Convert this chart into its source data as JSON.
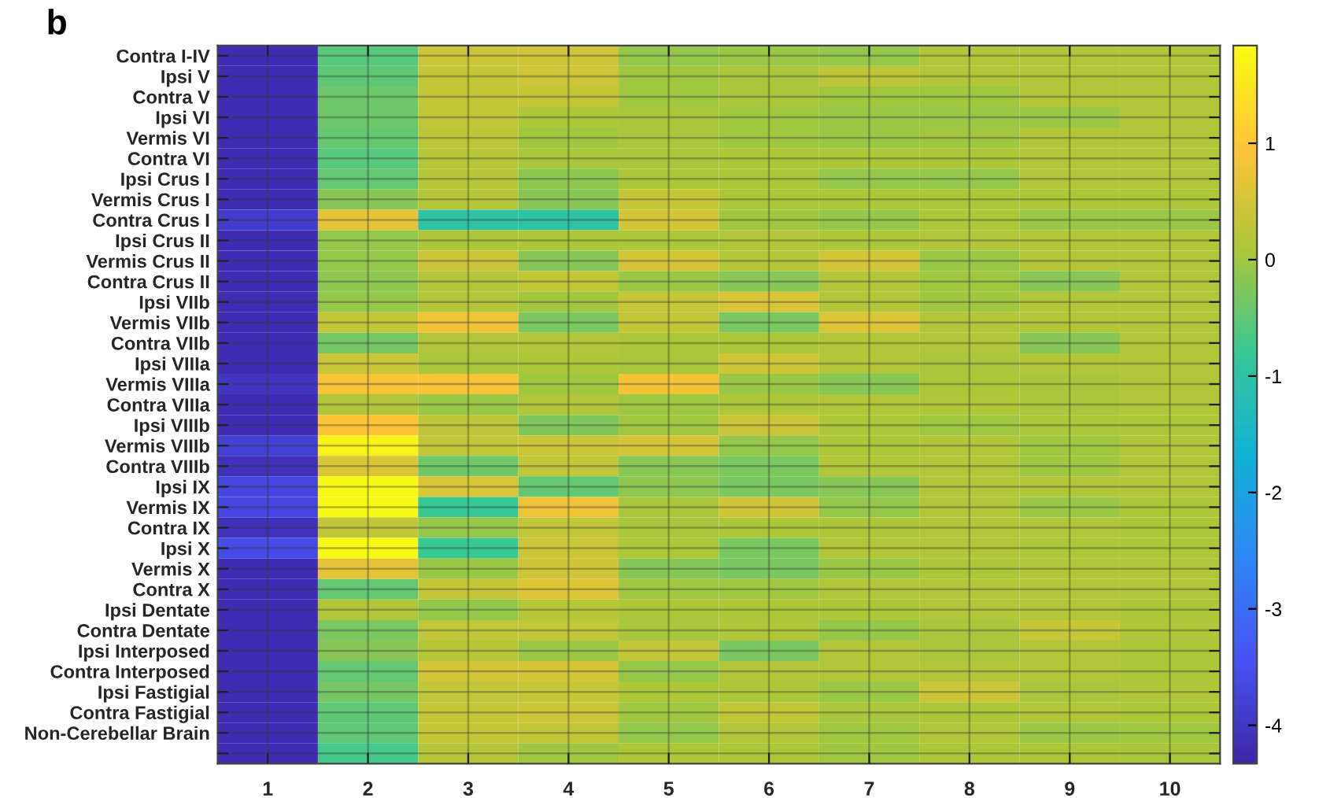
{
  "chart_data": {
    "type": "heatmap",
    "title": "b",
    "categories": [
      "1",
      "2",
      "3",
      "4",
      "5",
      "6",
      "7",
      "8",
      "9",
      "10"
    ],
    "y_categories": [
      "Contra I-IV",
      "Ipsi V",
      "Contra V",
      "Ipsi VI",
      "Vermis VI",
      "Contra VI",
      "Ipsi Crus I",
      "Vermis Crus I",
      "Contra Crus I",
      "Ipsi Crus II",
      "Vermis Crus II",
      "Contra Crus II",
      "Ipsi VIIb",
      "Vermis VIIb",
      "Contra VIIb",
      "Ipsi VIIIa",
      "Vermis VIIIa",
      "Contra VIIIa",
      "Ipsi VIIIb",
      "Vermis VIIIb",
      "Contra VIIIb",
      "Ipsi IX",
      "Vermis IX",
      "Contra IX",
      "Ipsi X",
      "Vermis X",
      "Contra X",
      "Ipsi Dentate",
      "Contra Dentate",
      "Ipsi Interposed",
      "Contra Interposed",
      "Ipsi Fastigial",
      "Contra Fastigial",
      "Non-Cerebellar Brain",
      null
    ],
    "cells": [
      [
        -4.2,
        -0.55,
        0.4,
        0.45,
        -0.1,
        -0.05,
        -0.1,
        0.15,
        0.15,
        0.15
      ],
      [
        -4.2,
        -0.5,
        0.35,
        0.45,
        0.0,
        0.05,
        0.25,
        0.15,
        0.15,
        0.15
      ],
      [
        -4.2,
        -0.4,
        0.35,
        0.35,
        0.0,
        0.05,
        0.0,
        0.0,
        0.15,
        0.15
      ],
      [
        -4.2,
        -0.4,
        0.3,
        0.1,
        0.05,
        0.0,
        -0.05,
        -0.05,
        -0.05,
        0.15
      ],
      [
        -4.2,
        -0.45,
        0.25,
        0.0,
        0.05,
        0.0,
        -0.05,
        0.0,
        0.15,
        0.15
      ],
      [
        -4.2,
        -0.55,
        0.2,
        0.05,
        0.05,
        0.1,
        0.1,
        0.1,
        0.15,
        0.15
      ],
      [
        -4.2,
        -0.45,
        0.2,
        -0.15,
        0.1,
        0.1,
        -0.1,
        -0.1,
        0.15,
        0.15
      ],
      [
        -4.2,
        -0.2,
        0.2,
        -0.2,
        0.35,
        0.1,
        0.1,
        0.1,
        0.1,
        0.1
      ],
      [
        -3.9,
        0.7,
        -1.0,
        -1.0,
        0.5,
        0.0,
        -0.1,
        0.1,
        -0.05,
        -0.05
      ],
      [
        -4.2,
        -0.1,
        0.1,
        0.1,
        0.1,
        0.15,
        0.1,
        0.15,
        0.15,
        0.15
      ],
      [
        -4.2,
        -0.1,
        0.4,
        -0.2,
        0.5,
        0.15,
        0.5,
        -0.05,
        0.15,
        0.15
      ],
      [
        -4.2,
        -0.15,
        0.15,
        0.3,
        -0.05,
        -0.2,
        0.15,
        0.0,
        -0.2,
        0.15
      ],
      [
        -4.2,
        -0.1,
        0.15,
        0.0,
        0.35,
        0.55,
        0.15,
        0.0,
        0.15,
        0.15
      ],
      [
        -4.2,
        0.3,
        0.8,
        -0.3,
        0.3,
        -0.3,
        0.6,
        0.15,
        0.15,
        0.15
      ],
      [
        -4.2,
        -0.35,
        0.15,
        0.15,
        0.1,
        0.1,
        0.15,
        0.15,
        -0.2,
        0.15
      ],
      [
        -4.2,
        0.4,
        0.05,
        0.1,
        0.05,
        0.45,
        0.15,
        0.05,
        0.15,
        0.15
      ],
      [
        -4.0,
        0.9,
        0.9,
        0.0,
        0.85,
        -0.05,
        -0.2,
        0.1,
        0.05,
        0.15
      ],
      [
        -4.2,
        0.15,
        -0.05,
        0.15,
        0.0,
        0.1,
        0.15,
        0.15,
        0.05,
        0.15
      ],
      [
        -4.2,
        0.95,
        0.25,
        -0.25,
        0.0,
        0.4,
        0.1,
        0.0,
        0.1,
        0.1
      ],
      [
        -3.8,
        1.7,
        0.3,
        0.4,
        0.5,
        -0.1,
        0.1,
        0.15,
        0.0,
        0.15
      ],
      [
        -4.1,
        0.55,
        -0.4,
        0.3,
        -0.2,
        -0.3,
        0.15,
        0.15,
        0.0,
        0.15
      ],
      [
        -3.7,
        1.8,
        0.55,
        -0.45,
        -0.15,
        -0.3,
        -0.2,
        0.15,
        0.15,
        0.15
      ],
      [
        -3.7,
        1.8,
        -0.8,
        0.8,
        0.05,
        0.45,
        -0.1,
        0.15,
        -0.05,
        0.1
      ],
      [
        -4.1,
        0.3,
        -0.1,
        0.3,
        0.05,
        0.1,
        0.1,
        0.15,
        0.15,
        0.1
      ],
      [
        -3.6,
        1.8,
        -0.8,
        0.4,
        0.1,
        -0.3,
        0.15,
        0.15,
        0.1,
        0.1
      ],
      [
        -4.2,
        0.7,
        -0.05,
        0.45,
        -0.2,
        -0.3,
        -0.05,
        0.1,
        0.15,
        0.15
      ],
      [
        -4.2,
        -0.45,
        0.35,
        0.6,
        0.0,
        0.0,
        0.15,
        0.15,
        0.15,
        0.15
      ],
      [
        -4.2,
        0.15,
        -0.1,
        0.2,
        0.1,
        0.1,
        0.1,
        0.15,
        0.15,
        0.1
      ],
      [
        -4.2,
        -0.3,
        0.3,
        0.3,
        0.05,
        0.15,
        -0.1,
        0.05,
        0.35,
        0.15
      ],
      [
        -4.2,
        -0.2,
        0.2,
        -0.05,
        0.3,
        -0.3,
        0.15,
        0.05,
        0.15,
        0.1
      ],
      [
        -4.2,
        -0.45,
        0.5,
        0.5,
        -0.1,
        0.15,
        0.15,
        0.15,
        0.15,
        0.1
      ],
      [
        -4.2,
        -0.35,
        0.3,
        0.35,
        0.1,
        0.1,
        -0.05,
        0.4,
        0.05,
        0.15
      ],
      [
        -4.2,
        -0.5,
        0.35,
        0.4,
        0.0,
        0.3,
        0.05,
        0.1,
        0.15,
        0.1
      ],
      [
        -4.2,
        -0.5,
        0.35,
        0.3,
        -0.1,
        0.15,
        0.0,
        0.15,
        -0.05,
        0.0
      ],
      [
        -4.2,
        -0.7,
        0.2,
        0.0,
        0.1,
        0.1,
        0.0,
        0.1,
        0.1,
        0.05
      ]
    ],
    "clim": [
      -4.33,
      1.84
    ],
    "cticks": [
      -4,
      -3,
      -2,
      -1,
      0,
      1
    ],
    "grid": true
  }
}
